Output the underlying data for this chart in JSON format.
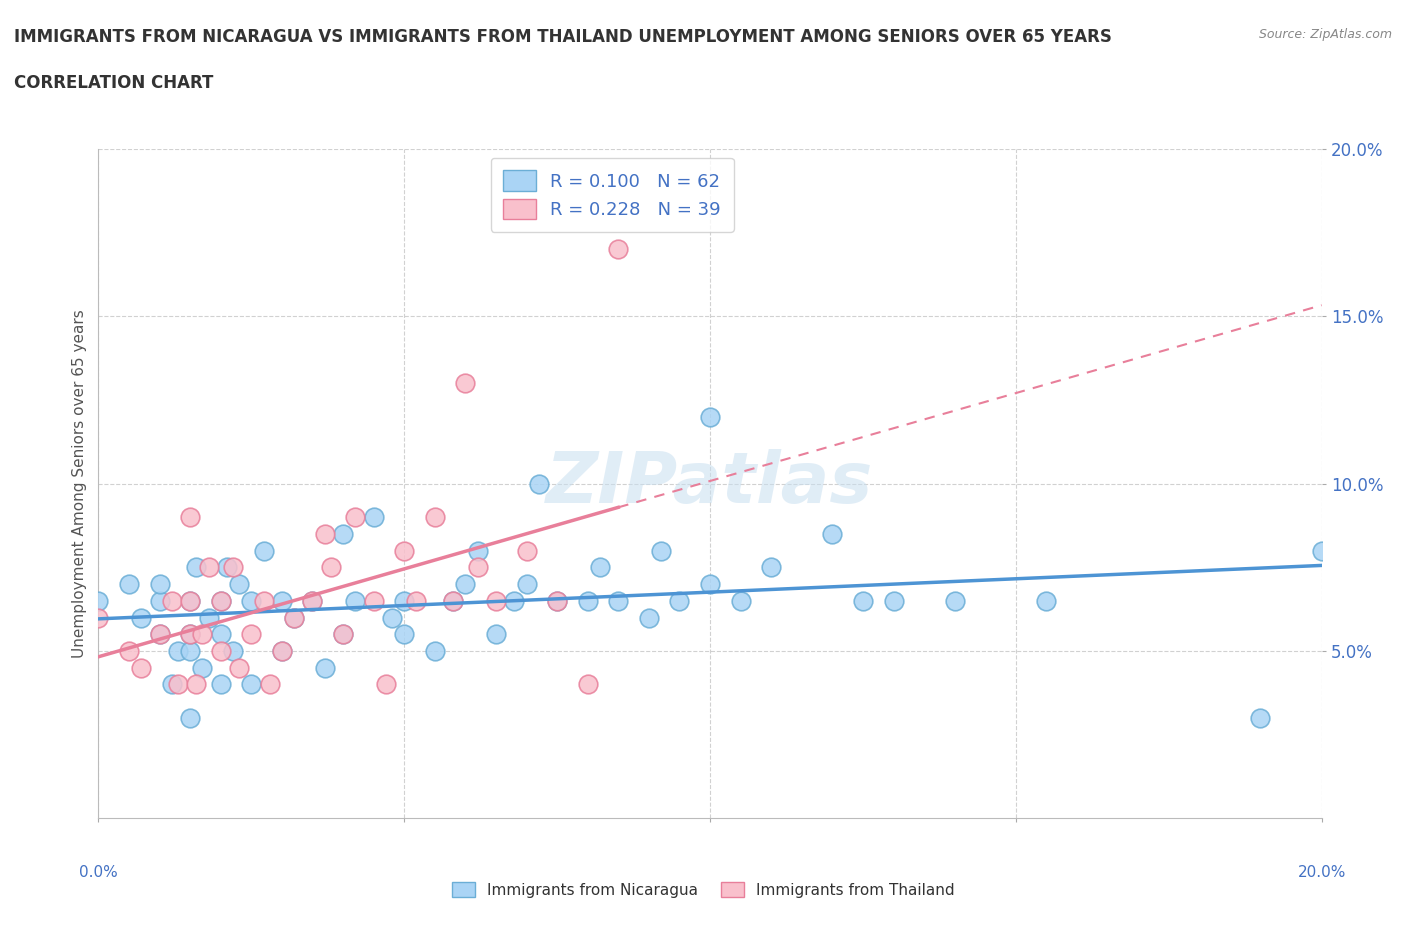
{
  "title_line1": "IMMIGRANTS FROM NICARAGUA VS IMMIGRANTS FROM THAILAND UNEMPLOYMENT AMONG SENIORS OVER 65 YEARS",
  "title_line2": "CORRELATION CHART",
  "source_text": "Source: ZipAtlas.com",
  "ylabel": "Unemployment Among Seniors over 65 years",
  "xlim": [
    0.0,
    0.2
  ],
  "ylim": [
    0.0,
    0.2
  ],
  "xticks": [
    0.0,
    0.05,
    0.1,
    0.15,
    0.2
  ],
  "yticks": [
    0.05,
    0.1,
    0.15,
    0.2
  ],
  "nicaragua_line_color": "#4d94d4",
  "nicaragua_face_color": "#aad4f5",
  "nicaragua_edge_color": "#6baed6",
  "thailand_line_color": "#e87f9a",
  "thailand_face_color": "#f9c0cc",
  "thailand_edge_color": "#e87f9a",
  "grid_color": "#cccccc",
  "R_nicaragua": 0.1,
  "N_nicaragua": 62,
  "R_thailand": 0.228,
  "N_thailand": 39,
  "legend_label_nicaragua": "Immigrants from Nicaragua",
  "legend_label_thailand": "Immigrants from Thailand",
  "watermark": "ZIPatlas",
  "title_color": "#333333",
  "axis_label_color": "#4472c4",
  "ylabel_color": "#555555",
  "nicaragua_x": [
    0.0,
    0.005,
    0.007,
    0.01,
    0.01,
    0.01,
    0.012,
    0.013,
    0.015,
    0.015,
    0.015,
    0.015,
    0.016,
    0.017,
    0.018,
    0.02,
    0.02,
    0.02,
    0.021,
    0.022,
    0.023,
    0.025,
    0.025,
    0.027,
    0.03,
    0.03,
    0.032,
    0.035,
    0.037,
    0.04,
    0.04,
    0.042,
    0.045,
    0.048,
    0.05,
    0.05,
    0.055,
    0.058,
    0.06,
    0.062,
    0.065,
    0.068,
    0.07,
    0.072,
    0.075,
    0.08,
    0.082,
    0.085,
    0.09,
    0.092,
    0.095,
    0.1,
    0.1,
    0.105,
    0.11,
    0.12,
    0.125,
    0.13,
    0.14,
    0.155,
    0.19,
    0.2
  ],
  "nicaragua_y": [
    0.065,
    0.07,
    0.06,
    0.055,
    0.065,
    0.07,
    0.04,
    0.05,
    0.03,
    0.05,
    0.055,
    0.065,
    0.075,
    0.045,
    0.06,
    0.04,
    0.055,
    0.065,
    0.075,
    0.05,
    0.07,
    0.04,
    0.065,
    0.08,
    0.05,
    0.065,
    0.06,
    0.065,
    0.045,
    0.055,
    0.085,
    0.065,
    0.09,
    0.06,
    0.055,
    0.065,
    0.05,
    0.065,
    0.07,
    0.08,
    0.055,
    0.065,
    0.07,
    0.1,
    0.065,
    0.065,
    0.075,
    0.065,
    0.06,
    0.08,
    0.065,
    0.07,
    0.12,
    0.065,
    0.075,
    0.085,
    0.065,
    0.065,
    0.065,
    0.065,
    0.03,
    0.08
  ],
  "thailand_x": [
    0.0,
    0.005,
    0.007,
    0.01,
    0.012,
    0.013,
    0.015,
    0.015,
    0.015,
    0.016,
    0.017,
    0.018,
    0.02,
    0.02,
    0.022,
    0.023,
    0.025,
    0.027,
    0.028,
    0.03,
    0.032,
    0.035,
    0.037,
    0.038,
    0.04,
    0.042,
    0.045,
    0.047,
    0.05,
    0.052,
    0.055,
    0.058,
    0.06,
    0.062,
    0.065,
    0.07,
    0.075,
    0.08,
    0.085
  ],
  "thailand_y": [
    0.06,
    0.05,
    0.045,
    0.055,
    0.065,
    0.04,
    0.055,
    0.065,
    0.09,
    0.04,
    0.055,
    0.075,
    0.05,
    0.065,
    0.075,
    0.045,
    0.055,
    0.065,
    0.04,
    0.05,
    0.06,
    0.065,
    0.085,
    0.075,
    0.055,
    0.09,
    0.065,
    0.04,
    0.08,
    0.065,
    0.09,
    0.065,
    0.13,
    0.075,
    0.065,
    0.08,
    0.065,
    0.04,
    0.17
  ]
}
